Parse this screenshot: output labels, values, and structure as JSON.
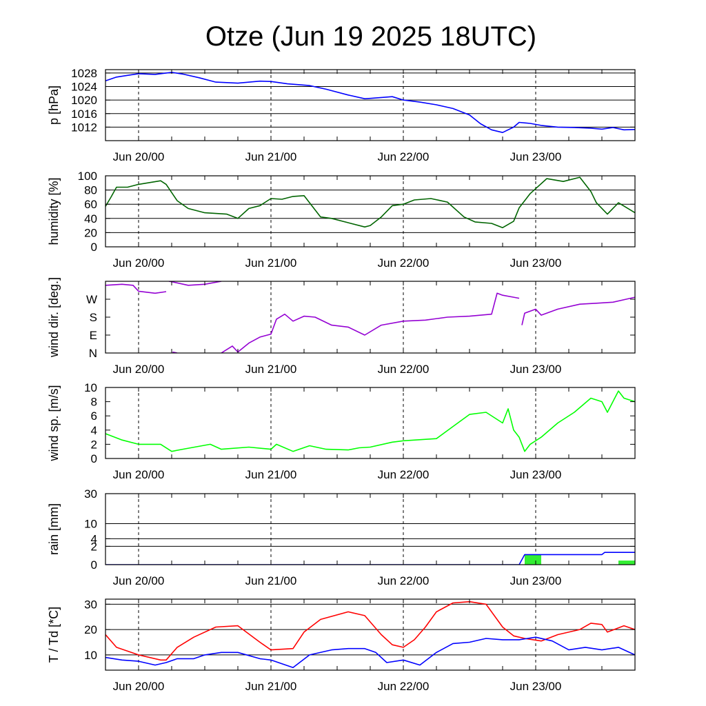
{
  "title": "Otze (Jun 19 2025 18UTC)",
  "x_axis": {
    "start": "2025-06-19 18:00",
    "end": "2025-06-23 18:00",
    "tick_labels": [
      "Jun 20/00",
      "Jun 21/00",
      "Jun 22/00",
      "Jun 23/00"
    ],
    "tick_times": [
      "2025-06-20 00:00",
      "2025-06-21 00:00",
      "2025-06-22 00:00",
      "2025-06-23 00:00"
    ],
    "minor_tick_hours": 6
  },
  "colors": {
    "pressure": "#0000ff",
    "humidity": "#006400",
    "wind_dir": "#9400d3",
    "wind_speed": "#00ff00",
    "rain_accum": "#0000ff",
    "rain_bars": "#33ee33",
    "temperature": "#ff0000",
    "dewpoint": "#0000ff"
  },
  "chart_data": [
    {
      "type": "line",
      "id": "pressure",
      "ylabel": "p [hPa]",
      "ylim": [
        1008,
        1029
      ],
      "yticks": [
        1012,
        1016,
        1020,
        1024,
        1028
      ],
      "ytick_labels": [
        "1012",
        "1016",
        "1020",
        "1024",
        "1028"
      ],
      "grid": true,
      "series": [
        {
          "color_key": "pressure",
          "x": [
            "2025-06-19 18:00",
            "2025-06-19 20:00",
            "2025-06-19 22:00",
            "2025-06-20 00:00",
            "2025-06-20 03:00",
            "2025-06-20 06:00",
            "2025-06-20 08:00",
            "2025-06-20 11:00",
            "2025-06-20 14:00",
            "2025-06-20 18:00",
            "2025-06-20 22:00",
            "2025-06-21 00:00",
            "2025-06-21 03:00",
            "2025-06-21 07:00",
            "2025-06-21 10:00",
            "2025-06-21 14:00",
            "2025-06-21 17:00",
            "2025-06-21 18:00",
            "2025-06-21 22:00",
            "2025-06-22 00:00",
            "2025-06-22 03:00",
            "2025-06-22 06:00",
            "2025-06-22 09:00",
            "2025-06-22 12:00",
            "2025-06-22 14:00",
            "2025-06-22 16:00",
            "2025-06-22 18:00",
            "2025-06-22 20:00",
            "2025-06-22 21:00",
            "2025-06-22 23:00",
            "2025-06-23 01:00",
            "2025-06-23 04:00",
            "2025-06-23 07:00",
            "2025-06-23 10:00",
            "2025-06-23 12:00",
            "2025-06-23 14:00",
            "2025-06-23 16:00",
            "2025-06-23 18:00"
          ],
          "y": [
            1025.7,
            1026.8,
            1027.3,
            1027.8,
            1027.6,
            1028.2,
            1027.7,
            1026.6,
            1025.3,
            1025.0,
            1025.6,
            1025.5,
            1024.8,
            1024.3,
            1023.2,
            1021.5,
            1020.4,
            1020.5,
            1021.0,
            1020.0,
            1019.4,
            1018.6,
            1017.5,
            1015.6,
            1013.0,
            1011.2,
            1010.4,
            1012.0,
            1013.4,
            1013.1,
            1012.5,
            1012.0,
            1011.9,
            1011.7,
            1011.4,
            1011.9,
            1011.2,
            1011.3
          ]
        }
      ]
    },
    {
      "type": "line",
      "id": "humidity",
      "ylabel": "humidity [%]",
      "ylim": [
        0,
        100
      ],
      "yticks": [
        0,
        20,
        40,
        60,
        80,
        100
      ],
      "ytick_labels": [
        "0",
        "20",
        "40",
        "60",
        "80",
        "100"
      ],
      "grid": true,
      "series": [
        {
          "color_key": "humidity",
          "x": [
            "2025-06-19 18:00",
            "2025-06-19 19:00",
            "2025-06-19 20:00",
            "2025-06-19 22:00",
            "2025-06-20 00:00",
            "2025-06-20 04:00",
            "2025-06-20 05:00",
            "2025-06-20 07:00",
            "2025-06-20 09:00",
            "2025-06-20 12:00",
            "2025-06-20 16:00",
            "2025-06-20 18:00",
            "2025-06-20 20:00",
            "2025-06-20 22:00",
            "2025-06-21 00:00",
            "2025-06-21 02:00",
            "2025-06-21 04:00",
            "2025-06-21 06:00",
            "2025-06-21 09:00",
            "2025-06-21 11:00",
            "2025-06-21 14:00",
            "2025-06-21 17:00",
            "2025-06-21 18:00",
            "2025-06-21 20:00",
            "2025-06-21 22:00",
            "2025-06-22 00:00",
            "2025-06-22 02:00",
            "2025-06-22 05:00",
            "2025-06-22 08:00",
            "2025-06-22 11:00",
            "2025-06-22 13:00",
            "2025-06-22 16:00",
            "2025-06-22 18:00",
            "2025-06-22 20:00",
            "2025-06-22 21:00",
            "2025-06-22 23:00",
            "2025-06-23 02:00",
            "2025-06-23 05:00",
            "2025-06-23 08:00",
            "2025-06-23 10:00",
            "2025-06-23 11:00",
            "2025-06-23 13:00",
            "2025-06-23 15:00",
            "2025-06-23 18:00"
          ],
          "y": [
            57,
            70,
            84,
            84,
            88,
            93,
            88,
            65,
            54,
            48,
            46,
            40,
            54,
            58,
            68,
            67,
            71,
            72,
            42,
            40,
            34,
            28,
            30,
            42,
            58,
            60,
            66,
            68,
            63,
            42,
            35,
            33,
            27,
            36,
            55,
            75,
            96,
            92,
            98,
            78,
            62,
            46,
            62,
            48
          ]
        }
      ]
    },
    {
      "type": "line",
      "id": "wind_dir",
      "ylabel": "wind dir. [deg.]",
      "ylim": [
        0,
        360
      ],
      "yticks": [
        0,
        90,
        180,
        270
      ],
      "ytick_labels": [
        "N",
        "E",
        "S",
        "W"
      ],
      "grid": false,
      "series": [
        {
          "color_key": "wind_dir",
          "segments": [
            {
              "x": [
                "2025-06-19 18:00",
                "2025-06-19 21:00",
                "2025-06-19 23:00",
                "2025-06-20 00:00",
                "2025-06-20 03:00",
                "2025-06-20 05:00"
              ],
              "y": [
                340,
                345,
                340,
                310,
                300,
                308
              ]
            },
            {
              "x": [
                "2025-06-20 05:30",
                "2025-06-20 06:00",
                "2025-06-20 09:00",
                "2025-06-20 12:00",
                "2025-06-20 15:00"
              ],
              "y": [
                360,
                358,
                340,
                345,
                360
              ]
            },
            {
              "x": [
                "2025-06-20 06:10",
                "2025-06-20 07:00"
              ],
              "y": [
                5,
                0
              ]
            },
            {
              "x": [
                "2025-06-20 15:00",
                "2025-06-20 17:00",
                "2025-06-20 18:00",
                "2025-06-20 20:00",
                "2025-06-20 22:00",
                "2025-06-21 00:00",
                "2025-06-21 01:00",
                "2025-06-21 02:30",
                "2025-06-21 04:00",
                "2025-06-21 06:00",
                "2025-06-21 08:00",
                "2025-06-21 11:00",
                "2025-06-21 14:00",
                "2025-06-21 17:00",
                "2025-06-21 20:00",
                "2025-06-22 00:00",
                "2025-06-22 04:00",
                "2025-06-22 08:00",
                "2025-06-22 12:00",
                "2025-06-22 16:00",
                "2025-06-22 17:00",
                "2025-06-22 18:00",
                "2025-06-22 20:00",
                "2025-06-22 21:00"
              ],
              "y": [
                0,
                35,
                5,
                50,
                80,
                95,
                170,
                195,
                160,
                185,
                180,
                140,
                130,
                90,
                140,
                160,
                165,
                180,
                185,
                195,
                300,
                290,
                280,
                275
              ]
            },
            {
              "x": [
                "2025-06-22 21:30",
                "2025-06-22 22:00",
                "2025-06-23 00:00",
                "2025-06-23 01:00",
                "2025-06-23 04:00",
                "2025-06-23 08:00",
                "2025-06-23 11:00",
                "2025-06-23 14:00",
                "2025-06-23 18:00"
              ],
              "y": [
                140,
                200,
                220,
                190,
                220,
                245,
                250,
                255,
                280
              ]
            }
          ]
        }
      ]
    },
    {
      "type": "line",
      "id": "wind_speed",
      "ylabel": "wind sp. [m/s]",
      "ylim": [
        0,
        10
      ],
      "yticks": [
        0,
        2,
        4,
        6,
        8,
        10
      ],
      "ytick_labels": [
        "0",
        "2",
        "4",
        "6",
        "8",
        "10"
      ],
      "grid": false,
      "series": [
        {
          "color_key": "wind_speed",
          "x": [
            "2025-06-19 18:00",
            "2025-06-19 21:00",
            "2025-06-20 00:00",
            "2025-06-20 04:00",
            "2025-06-20 06:00",
            "2025-06-20 08:00",
            "2025-06-20 13:00",
            "2025-06-20 15:00",
            "2025-06-20 20:00",
            "2025-06-21 00:00",
            "2025-06-21 01:00",
            "2025-06-21 04:00",
            "2025-06-21 07:00",
            "2025-06-21 10:00",
            "2025-06-21 14:00",
            "2025-06-21 16:00",
            "2025-06-21 18:00",
            "2025-06-21 22:00",
            "2025-06-22 00:00",
            "2025-06-22 06:00",
            "2025-06-22 09:00",
            "2025-06-22 12:00",
            "2025-06-22 15:00",
            "2025-06-22 18:00",
            "2025-06-22 19:00",
            "2025-06-22 20:00",
            "2025-06-22 21:00",
            "2025-06-22 22:00",
            "2025-06-22 23:00",
            "2025-06-23 01:00",
            "2025-06-23 04:00",
            "2025-06-23 07:00",
            "2025-06-23 10:00",
            "2025-06-23 12:00",
            "2025-06-23 13:00",
            "2025-06-23 15:00",
            "2025-06-23 16:00",
            "2025-06-23 18:00"
          ],
          "y": [
            3.5,
            2.6,
            2.0,
            2.0,
            1.0,
            1.3,
            2.0,
            1.3,
            1.6,
            1.3,
            2.0,
            1.0,
            1.8,
            1.3,
            1.2,
            1.5,
            1.6,
            2.3,
            2.5,
            2.8,
            4.5,
            6.2,
            6.5,
            5.0,
            7.0,
            4.0,
            3.0,
            1.0,
            2.0,
            3.0,
            5.0,
            6.5,
            8.5,
            8.0,
            6.5,
            9.5,
            8.5,
            8.0
          ]
        }
      ]
    },
    {
      "type": "line",
      "id": "rain",
      "ylabel": "rain [mm]",
      "ylim": [
        0,
        30
      ],
      "yticks": [
        0,
        2,
        4,
        10,
        30
      ],
      "ytick_labels": [
        "0",
        "2",
        "4",
        "10",
        "30"
      ],
      "grid": true,
      "series": [
        {
          "color_key": "rain_accum",
          "x": [
            "2025-06-19 18:00",
            "2025-06-22 21:00",
            "2025-06-22 22:00",
            "2025-06-23 12:00",
            "2025-06-23 12:30",
            "2025-06-23 18:00"
          ],
          "y": [
            0,
            0,
            0.6,
            0.6,
            0.9,
            0.9
          ]
        }
      ],
      "bars": [
        {
          "color_key": "rain_bars",
          "x_start": "2025-06-22 22:00",
          "x_end": "2025-06-23 01:00",
          "value": 0.6
        },
        {
          "color_key": "rain_bars",
          "x_start": "2025-06-23 15:00",
          "x_end": "2025-06-23 18:00",
          "value": 0.1
        }
      ]
    },
    {
      "type": "line",
      "id": "temp",
      "ylabel": "T / Td [*C]",
      "ylim": [
        4,
        32
      ],
      "yticks": [
        10,
        20,
        30
      ],
      "ytick_labels": [
        "10",
        "20",
        "30"
      ],
      "grid": true,
      "series": [
        {
          "color_key": "temperature",
          "x": [
            "2025-06-19 18:00",
            "2025-06-19 20:00",
            "2025-06-20 00:00",
            "2025-06-20 04:00",
            "2025-06-20 05:00",
            "2025-06-20 07:00",
            "2025-06-20 10:00",
            "2025-06-20 14:00",
            "2025-06-20 18:00",
            "2025-06-20 22:00",
            "2025-06-21 00:00",
            "2025-06-21 04:00",
            "2025-06-21 06:00",
            "2025-06-21 09:00",
            "2025-06-21 14:00",
            "2025-06-21 17:00",
            "2025-06-21 20:00",
            "2025-06-21 22:00",
            "2025-06-22 00:00",
            "2025-06-22 02:00",
            "2025-06-22 04:00",
            "2025-06-22 06:00",
            "2025-06-22 09:00",
            "2025-06-22 12:00",
            "2025-06-22 15:00",
            "2025-06-22 18:00",
            "2025-06-22 20:00",
            "2025-06-22 22:00",
            "2025-06-23 01:00",
            "2025-06-23 04:00",
            "2025-06-23 08:00",
            "2025-06-23 10:00",
            "2025-06-23 12:00",
            "2025-06-23 13:00",
            "2025-06-23 16:00",
            "2025-06-23 18:00"
          ],
          "y": [
            18,
            13,
            10,
            8,
            8,
            13,
            17,
            21,
            21.5,
            15,
            12,
            12.5,
            19,
            24,
            27,
            25.5,
            18,
            14,
            13,
            16,
            21,
            27,
            30.5,
            31,
            30,
            21,
            17.5,
            16.5,
            15.5,
            18,
            20,
            22.5,
            22,
            19,
            21.5,
            20
          ]
        },
        {
          "color_key": "dewpoint",
          "x": [
            "2025-06-19 18:00",
            "2025-06-19 21:00",
            "2025-06-20 00:00",
            "2025-06-20 03:00",
            "2025-06-20 05:00",
            "2025-06-20 07:00",
            "2025-06-20 10:00",
            "2025-06-20 12:00",
            "2025-06-20 15:00",
            "2025-06-20 18:00",
            "2025-06-20 22:00",
            "2025-06-21 00:00",
            "2025-06-21 04:00",
            "2025-06-21 07:00",
            "2025-06-21 11:00",
            "2025-06-21 14:00",
            "2025-06-21 17:00",
            "2025-06-21 19:00",
            "2025-06-21 21:00",
            "2025-06-22 00:00",
            "2025-06-22 03:00",
            "2025-06-22 06:00",
            "2025-06-22 09:00",
            "2025-06-22 12:00",
            "2025-06-22 15:00",
            "2025-06-22 18:00",
            "2025-06-22 21:00",
            "2025-06-23 00:00",
            "2025-06-23 03:00",
            "2025-06-23 06:00",
            "2025-06-23 09:00",
            "2025-06-23 12:00",
            "2025-06-23 15:00",
            "2025-06-23 18:00"
          ],
          "y": [
            9,
            8,
            7.5,
            6,
            7,
            8.5,
            8.5,
            10,
            11,
            11,
            8.5,
            8,
            5,
            10,
            12,
            12.5,
            12.5,
            11,
            7,
            8,
            6,
            11,
            14.5,
            15,
            16.5,
            16,
            16,
            17,
            15.5,
            12,
            13,
            12,
            13,
            10
          ]
        }
      ]
    }
  ]
}
